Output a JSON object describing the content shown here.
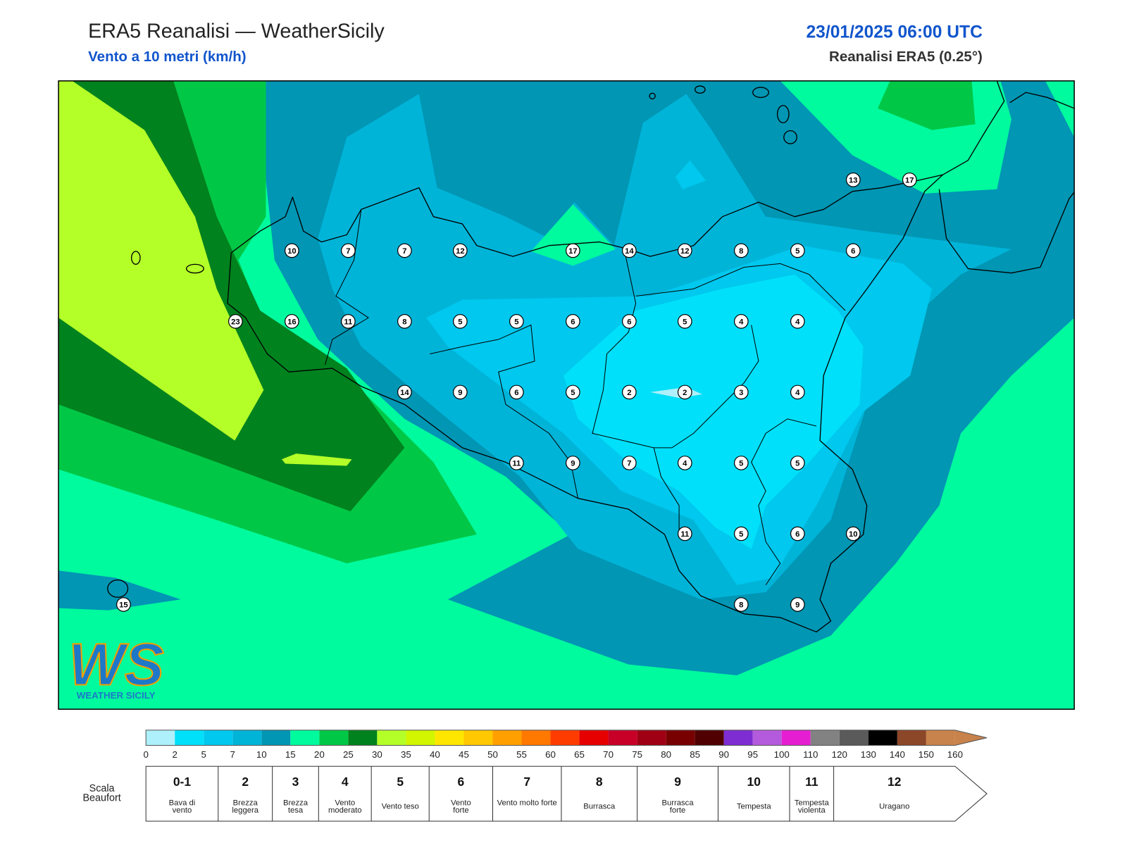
{
  "header": {
    "title": "ERA5 Reanalisi — WeatherSicily",
    "subtitle": "Vento a 10 metri (km/h)",
    "datetime": "23/01/2025 06:00 UTC",
    "source": "Reanalisi ERA5 (0.25°)"
  },
  "stations": {
    "values": [
      13,
      17,
      10,
      7,
      7,
      12,
      17,
      14,
      12,
      8,
      5,
      6,
      23,
      16,
      11,
      8,
      5,
      5,
      6,
      6,
      5,
      4,
      4,
      14,
      9,
      6,
      5,
      2,
      2,
      3,
      4,
      11,
      9,
      7,
      4,
      5,
      5,
      11,
      5,
      6,
      10,
      8,
      9,
      15
    ]
  },
  "colorbar": {
    "ticks": [
      0,
      2,
      5,
      7,
      10,
      15,
      20,
      25,
      30,
      35,
      40,
      45,
      50,
      55,
      60,
      65,
      70,
      75,
      80,
      85,
      90,
      95,
      100,
      110,
      120,
      130,
      140,
      150,
      160
    ],
    "colors": [
      "#aef0fb",
      "#00e0fa",
      "#00c8ee",
      "#00b4d8",
      "#0096b4",
      "#00fa9e",
      "#00c846",
      "#00821e",
      "#b4ff28",
      "#d2f500",
      "#ffe600",
      "#ffc800",
      "#ffa000",
      "#ff7800",
      "#ff3c00",
      "#e60000",
      "#c80028",
      "#a00014",
      "#780000",
      "#500000",
      "#7d2dd2",
      "#b45adc",
      "#e61ed2",
      "#828282",
      "#5a5a5a",
      "#000000",
      "#8c4628",
      "#c8824b"
    ]
  },
  "beaufort": {
    "title": "Scala Beaufort",
    "levels": [
      {
        "force": "0-1",
        "label": "Bava di vento"
      },
      {
        "force": "2",
        "label": "Brezza leggera"
      },
      {
        "force": "3",
        "label": "Brezza tesa"
      },
      {
        "force": "4",
        "label": "Vento moderato"
      },
      {
        "force": "5",
        "label": "Vento teso"
      },
      {
        "force": "6",
        "label": "Vento forte"
      },
      {
        "force": "7",
        "label": "Vento molto forte"
      },
      {
        "force": "8",
        "label": "Burrasca"
      },
      {
        "force": "9",
        "label": "Burrasca forte"
      },
      {
        "force": "10",
        "label": "Tempesta"
      },
      {
        "force": "11",
        "label": "Tempesta violenta"
      },
      {
        "force": "12",
        "label": "Uragano"
      }
    ]
  },
  "logo": {
    "mark": "WS",
    "caption": "WEATHER SICILY"
  }
}
